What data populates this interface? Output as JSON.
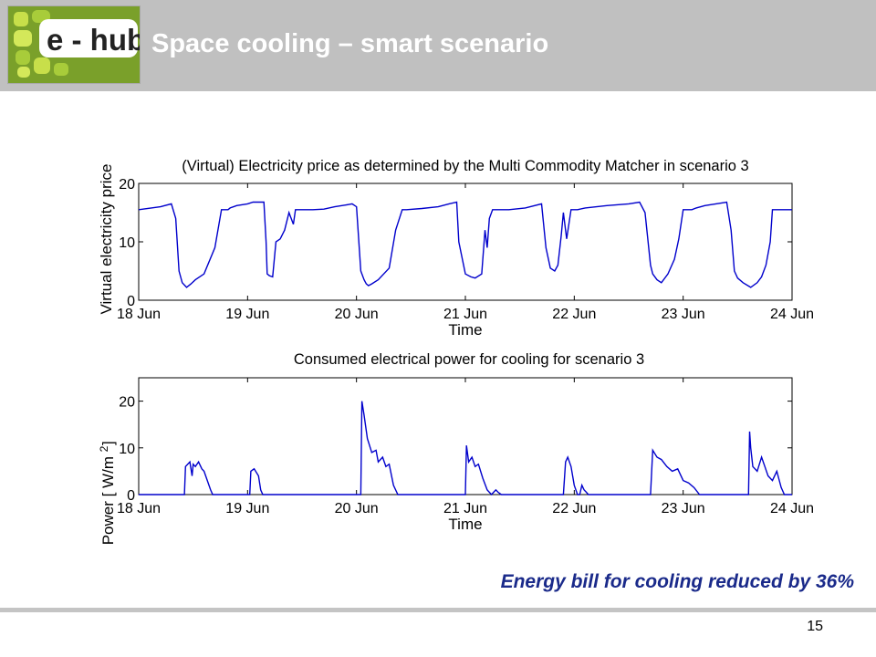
{
  "slide": {
    "title": "Space cooling – smart scenario",
    "logo_text": "e - hub",
    "conclusion": "Energy bill for cooling reduced by 36%",
    "page_number": "15"
  },
  "colors": {
    "header": "#c0c0c0",
    "line": "#0000cc",
    "conclusion": "#1a2a8a"
  },
  "chart_data": [
    {
      "type": "line",
      "title": "(Virtual) Electricity price as determined by the Multi Commodity Matcher in scenario 3",
      "xlabel": "Time",
      "ylabel": "Virtual electricity price",
      "x_tick_labels": [
        "18 Jun",
        "19 Jun",
        "20 Jun",
        "21 Jun",
        "22 Jun",
        "23 Jun",
        "24 Jun"
      ],
      "y_ticks": [
        0,
        10,
        20
      ],
      "xlim": [
        0,
        6
      ],
      "ylim": [
        0,
        20
      ],
      "grid": false,
      "series": [
        {
          "x": [
            0,
            0.2,
            0.3,
            0.34,
            0.37,
            0.4,
            0.44,
            0.48,
            0.52,
            0.6,
            0.7,
            0.76,
            0.8,
            0.82,
            0.84,
            0.9,
            1.0,
            1.05,
            1.15,
            1.17,
            1.18,
            1.2,
            1.23,
            1.26,
            1.3,
            1.34,
            1.38,
            1.42,
            1.44,
            1.5,
            1.6,
            1.7,
            1.8,
            1.9,
            1.96,
            2.0,
            2.04,
            2.07,
            2.09,
            2.11,
            2.14,
            2.2,
            2.3,
            2.36,
            2.42,
            2.46,
            2.6,
            2.75,
            2.85,
            2.92,
            2.94,
            3.0,
            3.05,
            3.09,
            3.15,
            3.18,
            3.2,
            3.22,
            3.25,
            3.4,
            3.55,
            3.7,
            3.74,
            3.78,
            3.82,
            3.85,
            3.88,
            3.9,
            3.93,
            3.97,
            4.03,
            4.1,
            4.3,
            4.5,
            4.6,
            4.65,
            4.7,
            4.72,
            4.76,
            4.8,
            4.86,
            4.92,
            4.96,
            5.0,
            5.08,
            5.12,
            5.2,
            5.3,
            5.4,
            5.44,
            5.47,
            5.5,
            5.55,
            5.62,
            5.68,
            5.72,
            5.76,
            5.8,
            5.82,
            5.9,
            6.0
          ],
          "y": [
            15.5,
            16,
            16.5,
            14,
            5,
            3,
            2.2,
            2.8,
            3.5,
            4.5,
            9,
            15.5,
            15.5,
            15.5,
            15.8,
            16.2,
            16.5,
            16.8,
            16.8,
            10,
            4.5,
            4.2,
            4,
            10,
            10.5,
            12,
            15,
            13,
            15.5,
            15.5,
            15.5,
            15.6,
            16,
            16.3,
            16.5,
            16,
            5,
            3.5,
            2.8,
            2.5,
            2.8,
            3.5,
            5.5,
            12,
            15.5,
            15.5,
            15.7,
            16,
            16.5,
            16.8,
            10,
            4.5,
            4,
            3.8,
            4.5,
            12,
            9,
            14,
            15.5,
            15.5,
            15.8,
            16.5,
            9,
            5.5,
            5,
            6,
            11,
            15,
            10.5,
            15.5,
            15.5,
            15.8,
            16.2,
            16.5,
            16.8,
            15,
            6,
            4.5,
            3.5,
            3,
            4.5,
            7,
            10.5,
            15.5,
            15.5,
            15.8,
            16.2,
            16.5,
            16.8,
            12,
            5,
            3.8,
            3,
            2.2,
            3,
            4,
            6,
            10,
            15.5,
            15.5,
            15.5
          ]
        }
      ]
    },
    {
      "type": "line",
      "title": "Consumed electrical power for cooling for scenario 3",
      "xlabel": "Time",
      "ylabel": "Power [ W/m",
      "ylabel_superscript": "2",
      "ylabel_suffix": " ]",
      "x_tick_labels": [
        "18 Jun",
        "19 Jun",
        "20 Jun",
        "21 Jun",
        "22 Jun",
        "23 Jun",
        "24 Jun"
      ],
      "y_ticks": [
        0,
        10,
        20
      ],
      "xlim": [
        0,
        6
      ],
      "ylim": [
        0,
        25
      ],
      "grid": false,
      "series": [
        {
          "x": [
            0,
            0.42,
            0.43,
            0.47,
            0.49,
            0.5,
            0.52,
            0.55,
            0.58,
            0.6,
            0.63,
            0.66,
            0.68,
            0.7,
            1.02,
            1.03,
            1.06,
            1.1,
            1.12,
            1.14,
            2.04,
            2.05,
            2.07,
            2.1,
            2.14,
            2.18,
            2.2,
            2.24,
            2.27,
            2.3,
            2.34,
            2.38,
            3.0,
            3.01,
            3.03,
            3.06,
            3.09,
            3.12,
            3.16,
            3.2,
            3.24,
            3.26,
            3.28,
            3.3,
            3.33,
            3.35,
            3.9,
            3.92,
            3.94,
            3.97,
            4.0,
            4.03,
            4.05,
            4.07,
            4.09,
            4.11,
            4.13,
            4.15,
            4.7,
            4.72,
            4.76,
            4.8,
            4.85,
            4.9,
            4.95,
            5.0,
            5.05,
            5.1,
            5.15,
            5.6,
            5.61,
            5.62,
            5.64,
            5.68,
            5.72,
            5.75,
            5.78,
            5.82,
            5.86,
            5.9,
            5.93,
            6.0
          ],
          "y": [
            0,
            0,
            6,
            7,
            4,
            6.5,
            6,
            7,
            5.5,
            5,
            3,
            1,
            0,
            0,
            0,
            5,
            5.5,
            4,
            1,
            0,
            0,
            20,
            17,
            12,
            9,
            9.5,
            7,
            8,
            6,
            6.5,
            2,
            0,
            0,
            10.5,
            7,
            8,
            6,
            6.5,
            3.5,
            1,
            0,
            0.5,
            1,
            0.5,
            0,
            0,
            0,
            7,
            8,
            6,
            2,
            0,
            0,
            2,
            1,
            0.5,
            0,
            0,
            0,
            9.5,
            8,
            7.5,
            6,
            5,
            5.5,
            3,
            2.5,
            1.5,
            0,
            0,
            13.5,
            10,
            6,
            5,
            8,
            6,
            4,
            3,
            5,
            1.5,
            0,
            0
          ]
        }
      ]
    }
  ]
}
